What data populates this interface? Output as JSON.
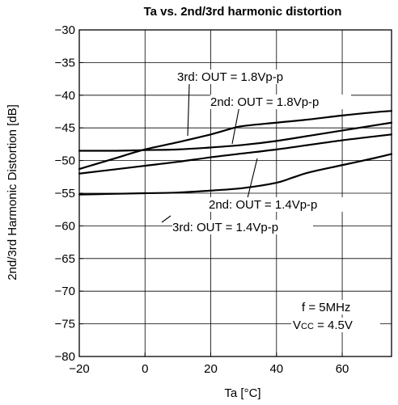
{
  "chart_data": {
    "type": "line",
    "title": "Ta vs. 2nd/3rd harmonic distortion",
    "xlabel": "Ta [°C]",
    "ylabel": "2nd/3rd Harmonic Distortion [dB]",
    "xlim": [
      -20,
      75
    ],
    "ylim": [
      -80,
      -30
    ],
    "xticks": [
      -20,
      0,
      20,
      40,
      60
    ],
    "yticks": [
      -30,
      -35,
      -40,
      -45,
      -50,
      -55,
      -60,
      -65,
      -70,
      -75,
      -80
    ],
    "xtick_labels": [
      "−20",
      "0",
      "20",
      "40",
      "60"
    ],
    "ytick_labels": [
      "−30",
      "−35",
      "−40",
      "−45",
      "−50",
      "−55",
      "−60",
      "−65",
      "−70",
      "−75",
      "−80"
    ],
    "grid": true,
    "series": [
      {
        "name": "3rd: OUT = 1.8Vp-p",
        "x": [
          -20,
          -10,
          0,
          10,
          20,
          27,
          30,
          40,
          50,
          60,
          70,
          75
        ],
        "y": [
          -51.3,
          -49.8,
          -48.3,
          -47.2,
          -46.0,
          -45.0,
          -44.7,
          -44.2,
          -43.7,
          -43.1,
          -42.6,
          -42.4
        ]
      },
      {
        "name": "2nd: OUT = 1.8Vp-p",
        "x": [
          -20,
          -10,
          0,
          10,
          20,
          30,
          40,
          50,
          60,
          70,
          75
        ],
        "y": [
          -48.5,
          -48.5,
          -48.4,
          -48.3,
          -48.0,
          -47.6,
          -47.0,
          -46.2,
          -45.4,
          -44.6,
          -44.2
        ]
      },
      {
        "name": "2nd: OUT = 1.4Vp-p",
        "x": [
          -20,
          -10,
          0,
          10,
          20,
          30,
          40,
          50,
          60,
          70,
          75
        ],
        "y": [
          -52.0,
          -51.4,
          -50.8,
          -50.2,
          -49.5,
          -48.9,
          -48.3,
          -47.6,
          -46.9,
          -46.3,
          -46.0
        ]
      },
      {
        "name": "3rd: OUT = 1.4Vp-p",
        "x": [
          -20,
          -10,
          0,
          10,
          20,
          30,
          40,
          45,
          50,
          60,
          70,
          75
        ],
        "y": [
          -55.2,
          -55.1,
          -55.0,
          -54.9,
          -54.6,
          -54.2,
          -53.4,
          -52.6,
          -51.8,
          -50.7,
          -49.6,
          -49.0
        ]
      }
    ],
    "annotations": {
      "third_18": "3rd: OUT = 1.8Vp-p",
      "second_18": "2nd: OUT = 1.8Vp-p",
      "second_14": "2nd: OUT = 1.4Vp-p",
      "third_14": "3rd: OUT = 1.4Vp-p",
      "freq": "f = 5MHz",
      "vcc_main": "V",
      "vcc_sub": "CC",
      "vcc_value": " = 4.5V"
    }
  }
}
